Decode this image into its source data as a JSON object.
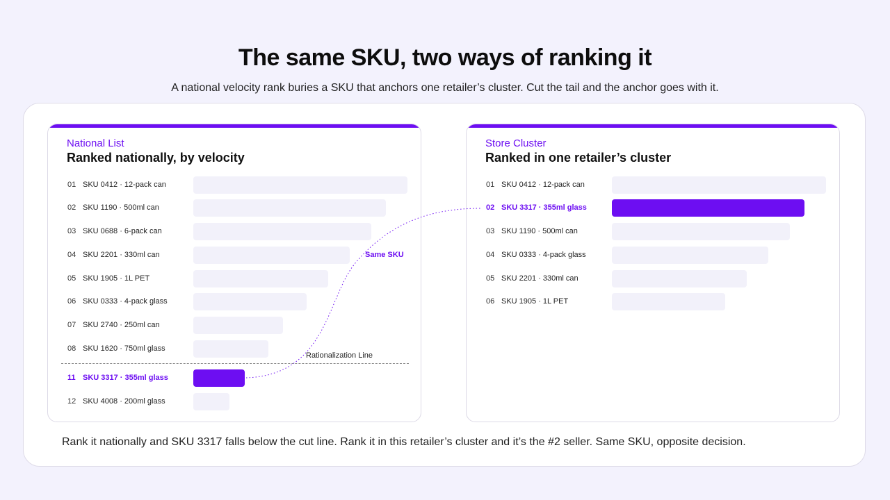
{
  "title": "The same SKU, two ways of ranking it",
  "subtitle": "A national velocity rank buries a SKU that anchors one retailer’s cluster. Cut the tail and the anchor goes with it.",
  "caption": "Rank it nationally and SKU 3317 falls below the cut line. Rank it in this retailer’s cluster and it’s the #2 seller. Same SKU, opposite decision.",
  "connector_label": "Same SKU",
  "colors": {
    "accent": "#6d0ef2",
    "bar": "#f2f1fa",
    "background": "#f3f2fd"
  },
  "chart_data": [
    {
      "type": "bar",
      "kicker": "National List",
      "title": "Ranked nationally, by velocity",
      "orientation": "horizontal",
      "cut_line_label": "Rationalization Line",
      "cut_line_after_rank": "08",
      "highlight": "SKU 3317 · 355ml glass",
      "ranks": [
        "01",
        "02",
        "03",
        "04",
        "05",
        "06",
        "07",
        "08",
        "11",
        "12"
      ],
      "categories": [
        "SKU 0412 · 12-pack can",
        "SKU 1190 · 500ml can",
        "SKU 0688 · 6-pack can",
        "SKU 2201 · 330ml can",
        "SKU 1905 · 1L PET",
        "SKU 0333 · 4-pack glass",
        "SKU 2740 · 250ml can",
        "SKU 1620 · 750ml glass",
        "SKU 3317 · 355ml glass",
        "SKU 4008 · 200ml glass"
      ],
      "values": [
        100,
        90,
        83,
        73,
        63,
        53,
        42,
        35,
        24,
        17
      ]
    },
    {
      "type": "bar",
      "kicker": "Store Cluster",
      "title": "Ranked in one retailer’s cluster",
      "orientation": "horizontal",
      "highlight": "SKU 3317 · 355ml glass",
      "ranks": [
        "01",
        "02",
        "03",
        "04",
        "05",
        "06"
      ],
      "categories": [
        "SKU 0412 · 12-pack can",
        "SKU 3317 · 355ml glass",
        "SKU 1190 · 500ml can",
        "SKU 0333 · 4-pack glass",
        "SKU 2201 · 330ml can",
        "SKU 1905 · 1L PET"
      ],
      "values": [
        100,
        90,
        83,
        73,
        63,
        53
      ]
    }
  ]
}
